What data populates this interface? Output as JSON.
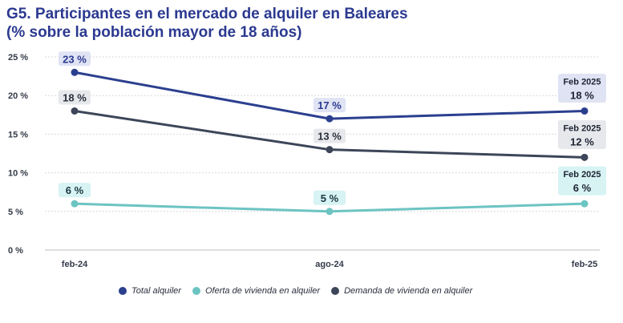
{
  "title": {
    "line1": "G5. Participantes en el mercado de alquiler en Baleares",
    "line2": "(% sobre la población mayor de 18 años)"
  },
  "colors": {
    "total": "#2b3f8f",
    "oferta": "#6cc4c2",
    "demanda": "#3c4658",
    "grid": "#d9d9d9",
    "label_bg_total": "#dfe3f4",
    "label_bg_oferta": "#d7f3f4",
    "label_bg_demanda": "#e7e8ec"
  },
  "chart_data": {
    "type": "line",
    "categories": [
      "feb-24",
      "ago-24",
      "feb-25"
    ],
    "y_ticks": [
      "0 %",
      "5 %",
      "10 %",
      "15 %",
      "20 %",
      "25 %"
    ],
    "ylim": [
      0,
      25
    ],
    "grid": true,
    "series": [
      {
        "key": "total",
        "name": "Total alquiler",
        "values": [
          23,
          17,
          18
        ],
        "point_labels": [
          "23 %",
          "17 %",
          "18 %"
        ],
        "last_label_header": "Feb 2025"
      },
      {
        "key": "demanda",
        "name": "Demanda de vivienda en alquiler",
        "values": [
          18,
          13,
          12
        ],
        "point_labels": [
          "18 %",
          "13 %",
          "12 %"
        ],
        "last_label_header": "Feb 2025"
      },
      {
        "key": "oferta",
        "name": "Oferta de vivienda en alquiler",
        "values": [
          6,
          5,
          6
        ],
        "point_labels": [
          "6 %",
          "5 %",
          "6 %"
        ],
        "last_label_header": "Feb 2025"
      }
    ]
  },
  "legend": [
    {
      "key": "total",
      "label": "Total alquiler"
    },
    {
      "key": "oferta",
      "label": "Oferta de vivienda en alquiler"
    },
    {
      "key": "demanda",
      "label": "Demanda de vivienda en alquiler"
    }
  ]
}
